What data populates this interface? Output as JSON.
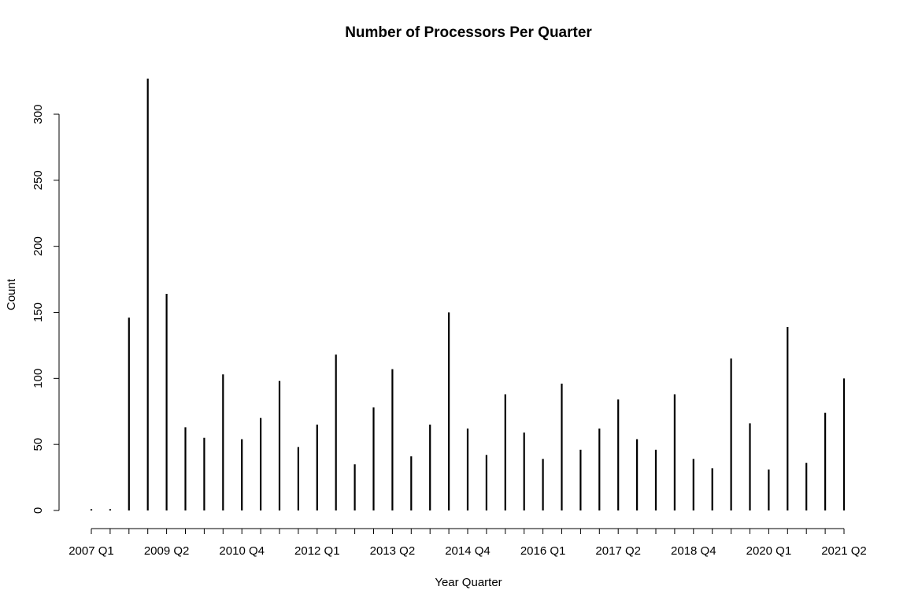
{
  "chart_data": {
    "type": "bar",
    "title": "Number of Processors Per Quarter",
    "xlabel": "Year Quarter",
    "ylabel": "Count",
    "ylim": [
      0,
      330
    ],
    "yticks": [
      0,
      50,
      100,
      150,
      200,
      250,
      300
    ],
    "x_tick_labels": [
      {
        "index": 0,
        "label": "2007 Q1"
      },
      {
        "index": 4,
        "label": "2009 Q2"
      },
      {
        "index": 8,
        "label": "2010 Q4"
      },
      {
        "index": 12,
        "label": "2012 Q1"
      },
      {
        "index": 16,
        "label": "2013 Q2"
      },
      {
        "index": 20,
        "label": "2014 Q4"
      },
      {
        "index": 24,
        "label": "2016 Q1"
      },
      {
        "index": 28,
        "label": "2017 Q2"
      },
      {
        "index": 32,
        "label": "2018 Q4"
      },
      {
        "index": 36,
        "label": "2020 Q1"
      },
      {
        "index": 40,
        "label": "2021 Q2"
      }
    ],
    "values": [
      1,
      1,
      146,
      327,
      164,
      63,
      55,
      103,
      54,
      70,
      98,
      48,
      65,
      118,
      35,
      78,
      107,
      41,
      65,
      150,
      62,
      42,
      88,
      59,
      39,
      96,
      46,
      62,
      84,
      54,
      46,
      88,
      39,
      32,
      115,
      66,
      31,
      139,
      36,
      74,
      100
    ],
    "grid": false,
    "legend": "none"
  }
}
